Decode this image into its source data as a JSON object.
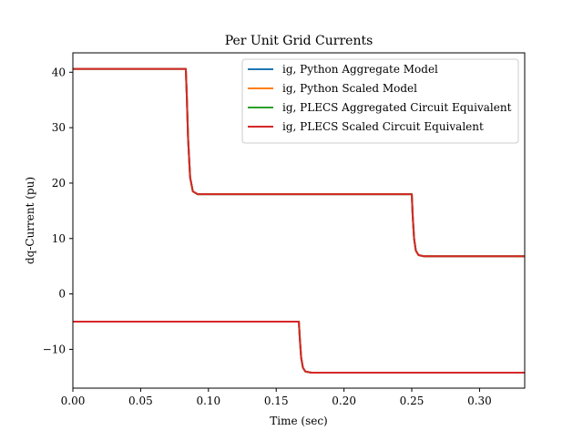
{
  "chart_data": {
    "type": "line",
    "title": "Per Unit Grid Currents",
    "xlabel": "Time (sec)",
    "ylabel": "dq-Current (pu)",
    "xlim": [
      0,
      0.3333
    ],
    "ylim": [
      -17,
      43.5
    ],
    "xticks": [
      0.0,
      0.05,
      0.1,
      0.15,
      0.2,
      0.25,
      0.3
    ],
    "xtick_labels": [
      "0.00",
      "0.05",
      "0.10",
      "0.15",
      "0.20",
      "0.25",
      "0.30"
    ],
    "yticks": [
      -10,
      0,
      10,
      20,
      30,
      40
    ],
    "ytick_labels": [
      "−10",
      "0",
      "10",
      "20",
      "30",
      "40"
    ],
    "grid": false,
    "legend_position": "top-right",
    "series": [
      {
        "name": "ig, Python Aggregate Model",
        "color": "#1f77b4",
        "traces": [
          {
            "x": [
              0.0,
              0.0833,
              0.084,
              0.085,
              0.0865,
              0.0885,
              0.092,
              0.25,
              0.2507,
              0.2517,
              0.253,
              0.255,
              0.259,
              0.3333
            ],
            "y": [
              40.6,
              40.6,
              36.0,
              28.0,
              21.0,
              18.5,
              18.0,
              18.0,
              14.0,
              10.0,
              7.8,
              7.0,
              6.8,
              6.8
            ]
          },
          {
            "x": [
              0.0,
              0.1667,
              0.1674,
              0.1684,
              0.1697,
              0.1715,
              0.176,
              0.3333
            ],
            "y": [
              -5.0,
              -5.0,
              -8.0,
              -11.5,
              -13.3,
              -14.0,
              -14.2,
              -14.2
            ]
          }
        ]
      },
      {
        "name": "ig, Python Scaled Model",
        "color": "#ff7f0e",
        "traces": [
          {
            "x": [
              0.0,
              0.0833,
              0.084,
              0.085,
              0.0865,
              0.0885,
              0.092,
              0.25,
              0.2507,
              0.2517,
              0.253,
              0.255,
              0.259,
              0.3333
            ],
            "y": [
              40.6,
              40.6,
              36.0,
              28.0,
              21.0,
              18.5,
              18.0,
              18.0,
              14.0,
              10.0,
              7.8,
              7.0,
              6.8,
              6.8
            ]
          },
          {
            "x": [
              0.0,
              0.1667,
              0.1674,
              0.1684,
              0.1697,
              0.1715,
              0.176,
              0.3333
            ],
            "y": [
              -5.0,
              -5.0,
              -8.0,
              -11.5,
              -13.3,
              -14.0,
              -14.2,
              -14.2
            ]
          }
        ]
      },
      {
        "name": "ig, PLECS Aggregated Circuit Equivalent",
        "color": "#2ca02c",
        "traces": [
          {
            "x": [
              0.0,
              0.0833,
              0.084,
              0.085,
              0.0865,
              0.0885,
              0.092,
              0.25,
              0.2507,
              0.2517,
              0.253,
              0.255,
              0.259,
              0.3333
            ],
            "y": [
              40.6,
              40.6,
              36.0,
              28.0,
              21.0,
              18.5,
              18.0,
              18.0,
              14.0,
              10.0,
              7.8,
              7.0,
              6.8,
              6.8
            ]
          },
          {
            "x": [
              0.0,
              0.1667,
              0.1674,
              0.1684,
              0.1697,
              0.1715,
              0.176,
              0.3333
            ],
            "y": [
              -5.0,
              -5.0,
              -8.0,
              -11.5,
              -13.3,
              -14.0,
              -14.2,
              -14.2
            ]
          }
        ]
      },
      {
        "name": "ig, PLECS Scaled Circuit Equivalent",
        "color": "#d62728",
        "traces": [
          {
            "x": [
              0.0,
              0.0833,
              0.084,
              0.085,
              0.0865,
              0.0885,
              0.092,
              0.25,
              0.2507,
              0.2517,
              0.253,
              0.255,
              0.259,
              0.3333
            ],
            "y": [
              40.6,
              40.6,
              36.0,
              28.0,
              21.0,
              18.5,
              18.0,
              18.0,
              14.0,
              10.0,
              7.8,
              7.0,
              6.8,
              6.8
            ]
          },
          {
            "x": [
              0.0,
              0.1667,
              0.1674,
              0.1684,
              0.1697,
              0.1715,
              0.176,
              0.3333
            ],
            "y": [
              -5.0,
              -5.0,
              -8.0,
              -11.5,
              -13.3,
              -14.0,
              -14.2,
              -14.2
            ]
          }
        ]
      }
    ]
  }
}
